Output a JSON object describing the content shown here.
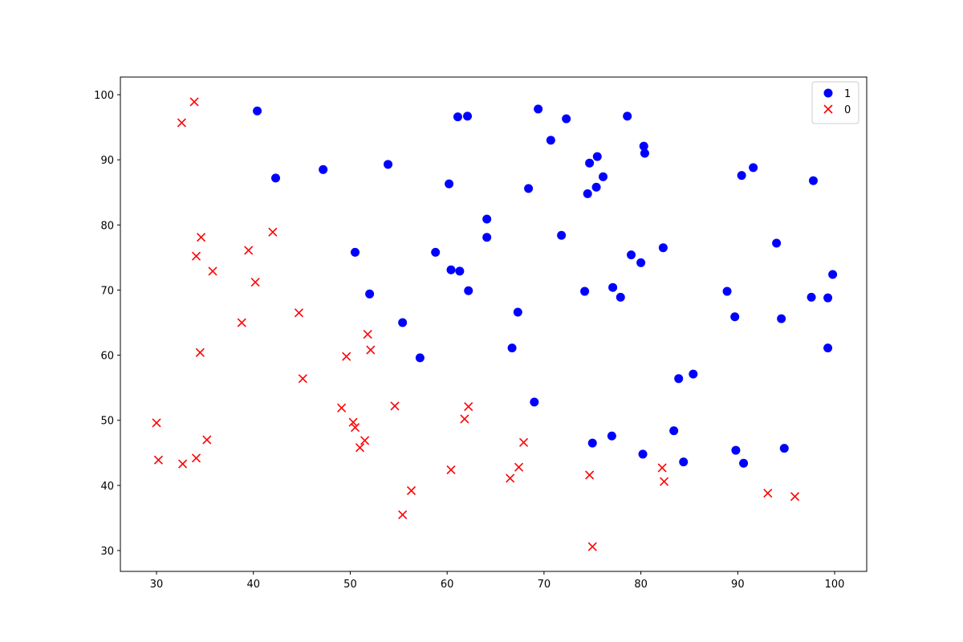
{
  "chart_data": {
    "type": "scatter",
    "series": [
      {
        "name": "1",
        "color": "#0000ff",
        "marker": "o",
        "x": [
          40.4,
          42.3,
          47.2,
          53.9,
          50.5,
          52.0,
          55.4,
          57.2,
          58.8,
          60.2,
          60.4,
          61.3,
          62.2,
          61.1,
          62.1,
          64.1,
          64.1,
          67.3,
          66.7,
          69.0,
          68.4,
          69.4,
          70.7,
          72.3,
          71.8,
          74.2,
          74.5,
          74.7,
          75.4,
          75.5,
          76.1,
          75.0,
          77.0,
          77.1,
          77.9,
          78.6,
          79.0,
          80.0,
          80.2,
          80.3,
          80.4,
          82.3,
          83.4,
          83.9,
          84.4,
          85.4,
          88.9,
          89.7,
          89.8,
          90.4,
          90.6,
          91.6,
          94.0,
          94.5,
          94.8,
          97.6,
          97.8,
          99.3,
          99.3,
          99.8
        ],
        "y": [
          97.5,
          87.2,
          88.5,
          89.3,
          75.8,
          69.4,
          65.0,
          59.6,
          75.8,
          86.3,
          73.1,
          72.9,
          69.9,
          96.6,
          96.7,
          80.9,
          78.1,
          66.6,
          61.1,
          52.8,
          85.6,
          97.8,
          93.0,
          96.3,
          78.4,
          69.8,
          84.8,
          89.5,
          85.8,
          90.5,
          87.4,
          46.5,
          47.6,
          70.4,
          68.9,
          96.7,
          75.4,
          74.2,
          44.8,
          92.1,
          91.0,
          76.5,
          48.4,
          56.4,
          43.6,
          57.1,
          69.8,
          65.9,
          45.4,
          87.6,
          43.4,
          88.8,
          77.2,
          65.6,
          45.7,
          68.9,
          86.8,
          68.8,
          61.1,
          72.4
        ]
      },
      {
        "name": "0",
        "color": "#ff0000",
        "marker": "x",
        "x": [
          33.9,
          32.6,
          34.6,
          34.1,
          35.8,
          39.5,
          40.2,
          42.0,
          34.5,
          38.8,
          44.7,
          45.1,
          49.6,
          51.8,
          52.1,
          30.0,
          30.2,
          32.7,
          34.1,
          35.2,
          49.1,
          50.3,
          50.5,
          51.5,
          51.0,
          54.6,
          56.3,
          55.4,
          60.4,
          61.8,
          62.2,
          66.5,
          67.4,
          67.9,
          74.7,
          75.0,
          82.2,
          82.4,
          93.1,
          95.9
        ],
        "y": [
          98.9,
          95.7,
          78.1,
          75.2,
          72.9,
          76.1,
          71.2,
          78.9,
          60.4,
          65.0,
          66.5,
          56.4,
          59.8,
          63.2,
          60.8,
          49.6,
          43.9,
          43.3,
          44.2,
          47.0,
          51.9,
          49.7,
          48.9,
          46.9,
          45.8,
          52.2,
          39.2,
          35.5,
          42.4,
          50.2,
          52.1,
          41.1,
          42.8,
          46.6,
          41.6,
          30.6,
          42.7,
          40.6,
          38.8,
          38.3
        ]
      }
    ],
    "xlim": [
      26.27,
      103.31
    ],
    "ylim": [
      26.8,
      102.71
    ],
    "xticks": [
      30,
      40,
      50,
      60,
      70,
      80,
      90,
      100
    ],
    "yticks": [
      30,
      40,
      50,
      60,
      70,
      80,
      90,
      100
    ],
    "grid": false,
    "legend": "upper right"
  }
}
